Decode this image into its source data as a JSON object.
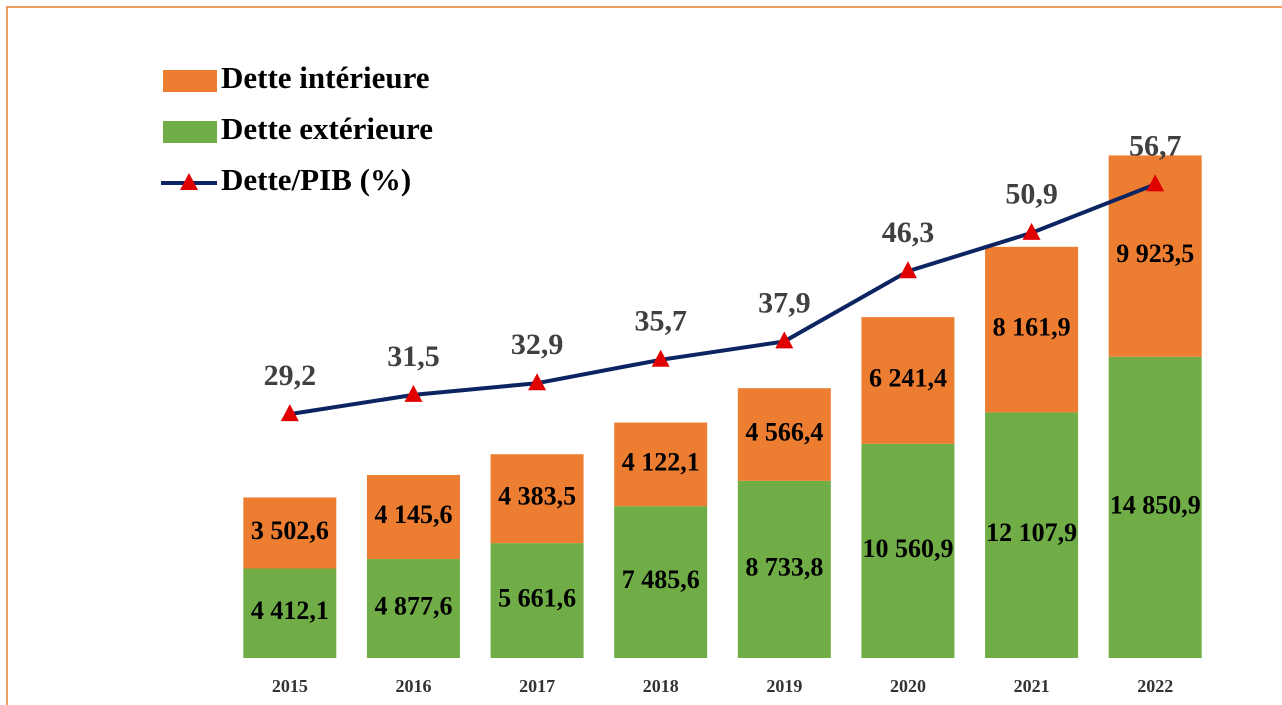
{
  "chart_data": {
    "type": "bar",
    "stacked": true,
    "categories": [
      "2015",
      "2016",
      "2017",
      "2018",
      "2019",
      "2020",
      "2021",
      "2022"
    ],
    "series": [
      {
        "name": "Dette intérieure",
        "color": "#ed7d31",
        "values": [
          3502.6,
          4145.6,
          4383.5,
          4122.1,
          4566.4,
          6241.4,
          8161.9,
          9923.5
        ],
        "value_labels": [
          "3 502,6",
          "4 145,6",
          "4 383,5",
          "4 122,1",
          "4 566,4",
          "6 241,4",
          "8 161,9",
          "9 923,5"
        ]
      },
      {
        "name": "Dette extérieure",
        "color": "#70ad47",
        "values": [
          4412.1,
          4877.6,
          5661.6,
          7485.6,
          8733.8,
          10560.9,
          12107.9,
          14850.9
        ],
        "value_labels": [
          "4 412,1",
          "4 877,6",
          "5 661,6",
          "7 485,6",
          "8 733,8",
          "10 560,9",
          "12 107,9",
          "14 850,9"
        ]
      },
      {
        "name": "Dette/PIB (%)",
        "type": "line",
        "axis": "y2",
        "color": "#0c2461",
        "marker_color": "#e00000",
        "values": [
          29.2,
          31.5,
          32.9,
          35.7,
          37.9,
          46.3,
          50.9,
          56.7
        ],
        "value_labels": [
          "29,2",
          "31,5",
          "32,9",
          "35,7",
          "37,9",
          "46,3",
          "50,9",
          "56,7"
        ]
      }
    ],
    "ylim": [
      0,
      28000
    ],
    "y2lim": [
      0,
      68
    ]
  }
}
